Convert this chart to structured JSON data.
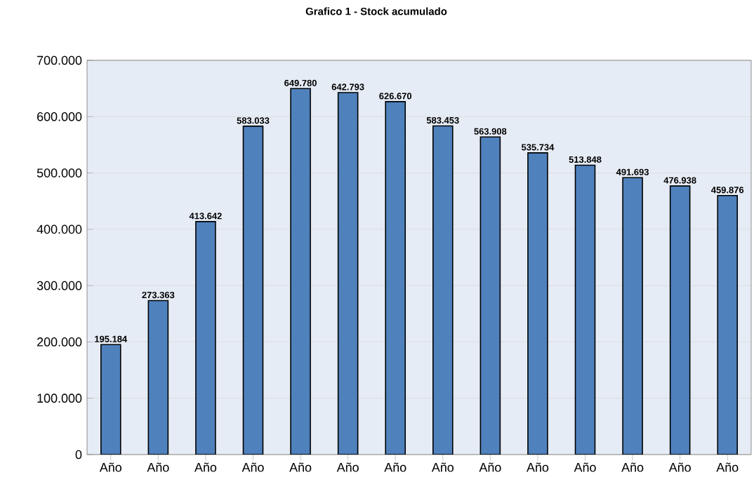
{
  "chart_data": {
    "type": "bar",
    "title": "Grafico  1 - Stock acumulado",
    "categories": [
      "Año",
      "Año",
      "Año",
      "Año",
      "Año",
      "Año",
      "Año",
      "Año",
      "Año",
      "Año",
      "Año",
      "Año",
      "Año",
      "Año"
    ],
    "values": [
      195184,
      273363,
      413642,
      583033,
      649780,
      642793,
      626670,
      583453,
      563908,
      535734,
      513848,
      491693,
      476938,
      459876
    ],
    "value_labels": [
      "195.184",
      "273.363",
      "413.642",
      "583.033",
      "649.780",
      "642.793",
      "626.670",
      "583.453",
      "563.908",
      "535.734",
      "513.848",
      "491.693",
      "476.938",
      "459.876"
    ],
    "color": "#4f81bd",
    "ylim": [
      0,
      700000
    ],
    "yticks": [
      0,
      {
        "value": 100000,
        "label": "100.000"
      },
      {
        "value": 200000,
        "label": "200.000"
      },
      {
        "value": 300000,
        "label": "300.000"
      },
      {
        "value": 400000,
        "label": "400.000"
      },
      {
        "value": 500000,
        "label": "500.000"
      },
      {
        "value": 600000,
        "label": "600.000"
      },
      {
        "value": 700000,
        "label": "700.000"
      }
    ],
    "grid": "y"
  }
}
